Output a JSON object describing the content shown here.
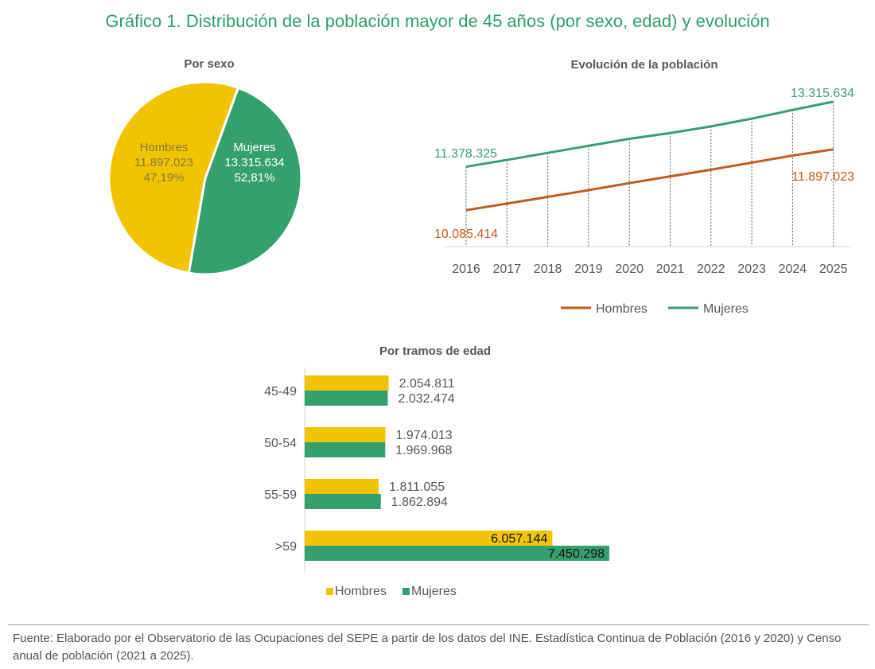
{
  "title": "Gráfico 1. Distribución de la población mayor de 45 años (por sexo, edad) y evolución",
  "colors": {
    "title": "#2f9e6a",
    "hombres_pie": "#f0c400",
    "mujeres": "#35a06e",
    "hombres_line": "#c55a1b",
    "mujeres_line": "#3a9e72",
    "text": "#595959"
  },
  "chart_data": [
    {
      "type": "pie",
      "title": "Por sexo",
      "slices": [
        {
          "name": "Hombres",
          "value": 11897023,
          "value_label": "11.897.023",
          "percent_label": "47,19%"
        },
        {
          "name": "Mujeres",
          "value": 13315634,
          "value_label": "13.315.634",
          "percent_label": "52,81%"
        }
      ]
    },
    {
      "type": "line",
      "title": "Evolución de la población",
      "x": [
        "2016",
        "2017",
        "2018",
        "2019",
        "2020",
        "2021",
        "2022",
        "2023",
        "2024",
        "2025"
      ],
      "ylim": [
        9000000,
        13500000
      ],
      "grid": "dashed vertical",
      "legend": "bottom",
      "series": [
        {
          "name": "Hombres",
          "values": [
            10085414,
            10280000,
            10480000,
            10680000,
            10890000,
            11090000,
            11290000,
            11500000,
            11710000,
            11897023
          ],
          "start_label": "10.085.414",
          "end_label": "11.897.023"
        },
        {
          "name": "Mujeres",
          "values": [
            11378325,
            11580000,
            11790000,
            12000000,
            12210000,
            12380000,
            12580000,
            12810000,
            13070000,
            13315634
          ],
          "start_label": "11.378.325",
          "end_label": "13.315.634"
        }
      ]
    },
    {
      "type": "bar",
      "orientation": "horizontal",
      "title": "Por tramos de edad",
      "categories": [
        "45-49",
        "50-54",
        "55-59",
        ">59"
      ],
      "legend": "bottom",
      "series": [
        {
          "name": "Hombres",
          "values": [
            2054811,
            1974013,
            1811055,
            6057144
          ],
          "labels": [
            "2.054.811",
            "1.974.013",
            "1.811.055",
            "6.057.144"
          ]
        },
        {
          "name": "Mujeres",
          "values": [
            2032474,
            1969968,
            1862894,
            7450298
          ],
          "labels": [
            "2.032.474",
            "1.969.968",
            "1.862.894",
            "7.450.298"
          ]
        }
      ]
    }
  ],
  "source": "Fuente: Elaborado por el Observatorio de las Ocupaciones del SEPE a partir de los datos del INE. Estadística Continua de Población (2016 y 2020) y Censo anual de población (2021 a 2025)."
}
